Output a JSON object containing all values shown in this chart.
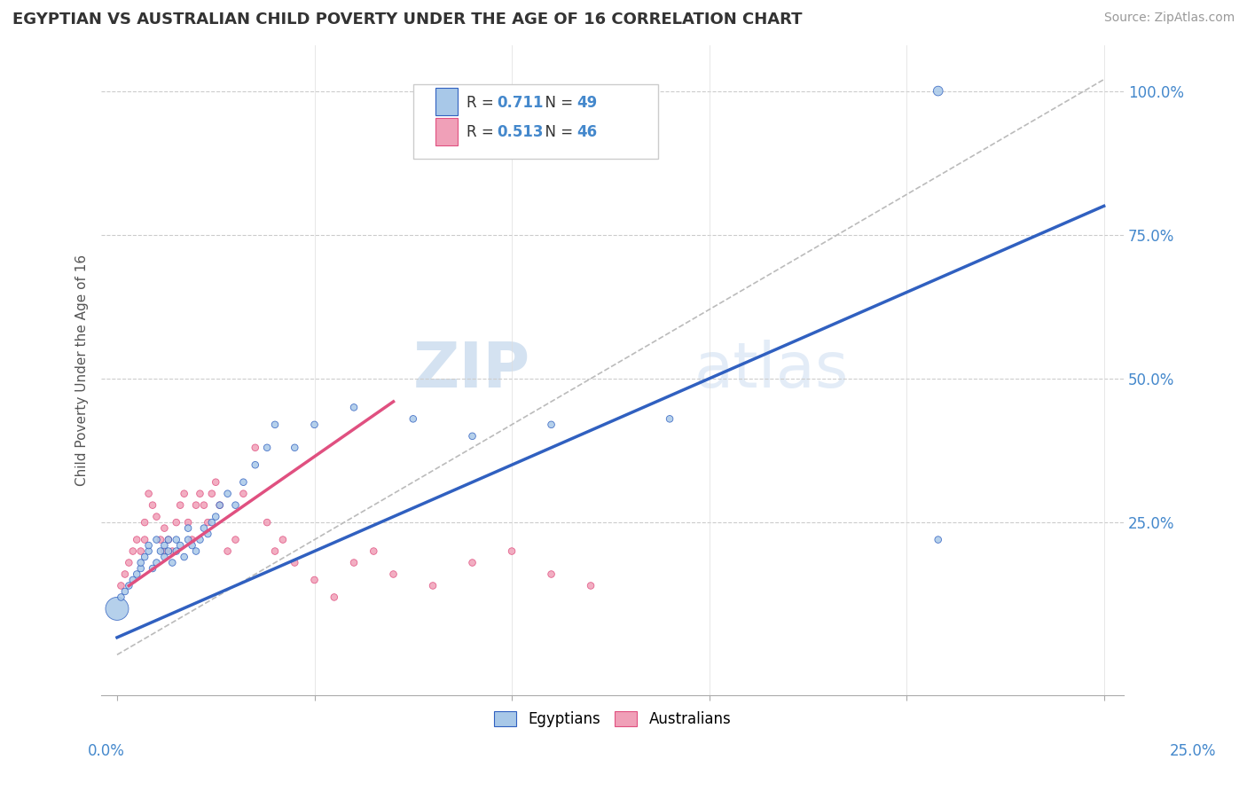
{
  "title": "EGYPTIAN VS AUSTRALIAN CHILD POVERTY UNDER THE AGE OF 16 CORRELATION CHART",
  "source": "Source: ZipAtlas.com",
  "ylabel": "Child Poverty Under the Age of 16",
  "ytick_labels": [
    "25.0%",
    "50.0%",
    "75.0%",
    "100.0%"
  ],
  "ytick_values": [
    0.25,
    0.5,
    0.75,
    1.0
  ],
  "xlim": [
    0.0,
    0.25
  ],
  "ylim": [
    -0.05,
    1.08
  ],
  "legend_labels": [
    "Egyptians",
    "Australians"
  ],
  "blue_scatter_color": "#a8c8e8",
  "pink_scatter_color": "#f0a0b8",
  "trendline_blue_color": "#3060c0",
  "trendline_pink_color": "#e05080",
  "tick_color": "#4488cc",
  "watermark_zip": "ZIP",
  "watermark_atlas": "atlas",
  "eg_x": [
    0.0,
    0.001,
    0.002,
    0.003,
    0.004,
    0.005,
    0.006,
    0.006,
    0.007,
    0.008,
    0.008,
    0.009,
    0.01,
    0.01,
    0.011,
    0.012,
    0.012,
    0.013,
    0.013,
    0.014,
    0.015,
    0.015,
    0.016,
    0.017,
    0.018,
    0.018,
    0.019,
    0.02,
    0.021,
    0.022,
    0.023,
    0.024,
    0.025,
    0.026,
    0.028,
    0.03,
    0.032,
    0.035,
    0.038,
    0.04,
    0.045,
    0.05,
    0.06,
    0.075,
    0.09,
    0.11,
    0.14,
    0.208,
    0.208
  ],
  "eg_y": [
    0.1,
    0.12,
    0.13,
    0.14,
    0.15,
    0.16,
    0.17,
    0.18,
    0.19,
    0.2,
    0.21,
    0.17,
    0.18,
    0.22,
    0.2,
    0.19,
    0.21,
    0.2,
    0.22,
    0.18,
    0.2,
    0.22,
    0.21,
    0.19,
    0.22,
    0.24,
    0.21,
    0.2,
    0.22,
    0.24,
    0.23,
    0.25,
    0.26,
    0.28,
    0.3,
    0.28,
    0.32,
    0.35,
    0.38,
    0.42,
    0.38,
    0.42,
    0.45,
    0.43,
    0.4,
    0.42,
    0.43,
    1.0,
    0.22
  ],
  "eg_sizes": [
    350,
    30,
    30,
    30,
    30,
    30,
    30,
    30,
    30,
    30,
    30,
    30,
    30,
    30,
    30,
    30,
    30,
    30,
    30,
    30,
    30,
    30,
    30,
    30,
    30,
    30,
    30,
    30,
    30,
    30,
    30,
    30,
    30,
    30,
    30,
    30,
    30,
    30,
    30,
    30,
    30,
    30,
    30,
    30,
    30,
    30,
    30,
    60,
    30
  ],
  "au_x": [
    0.001,
    0.002,
    0.003,
    0.004,
    0.005,
    0.006,
    0.007,
    0.007,
    0.008,
    0.009,
    0.01,
    0.011,
    0.012,
    0.012,
    0.013,
    0.014,
    0.015,
    0.016,
    0.017,
    0.018,
    0.019,
    0.02,
    0.021,
    0.022,
    0.023,
    0.024,
    0.025,
    0.026,
    0.028,
    0.03,
    0.032,
    0.035,
    0.038,
    0.04,
    0.042,
    0.045,
    0.05,
    0.055,
    0.06,
    0.065,
    0.07,
    0.08,
    0.09,
    0.1,
    0.11,
    0.12
  ],
  "au_y": [
    0.14,
    0.16,
    0.18,
    0.2,
    0.22,
    0.2,
    0.22,
    0.25,
    0.3,
    0.28,
    0.26,
    0.22,
    0.2,
    0.24,
    0.22,
    0.2,
    0.25,
    0.28,
    0.3,
    0.25,
    0.22,
    0.28,
    0.3,
    0.28,
    0.25,
    0.3,
    0.32,
    0.28,
    0.2,
    0.22,
    0.3,
    0.38,
    0.25,
    0.2,
    0.22,
    0.18,
    0.15,
    0.12,
    0.18,
    0.2,
    0.16,
    0.14,
    0.18,
    0.2,
    0.16,
    0.14
  ],
  "au_sizes": [
    30,
    30,
    30,
    30,
    30,
    30,
    30,
    30,
    30,
    30,
    30,
    30,
    30,
    30,
    30,
    30,
    30,
    30,
    30,
    30,
    30,
    30,
    30,
    30,
    30,
    30,
    30,
    30,
    30,
    30,
    30,
    30,
    30,
    30,
    30,
    30,
    30,
    30,
    30,
    30,
    30,
    30,
    30,
    30,
    30,
    30
  ],
  "blue_trend_x0": 0.0,
  "blue_trend_x1": 0.25,
  "blue_trend_y0": 0.05,
  "blue_trend_y1": 0.8,
  "pink_trend_x0": 0.003,
  "pink_trend_x1": 0.07,
  "pink_trend_y0": 0.14,
  "pink_trend_y1": 0.46,
  "ref_line_x0": 0.0,
  "ref_line_x1": 0.25,
  "ref_line_y0": 0.02,
  "ref_line_y1": 1.02,
  "legend_R1": "0.711",
  "legend_N1": "49",
  "legend_R2": "0.513",
  "legend_N2": "46"
}
